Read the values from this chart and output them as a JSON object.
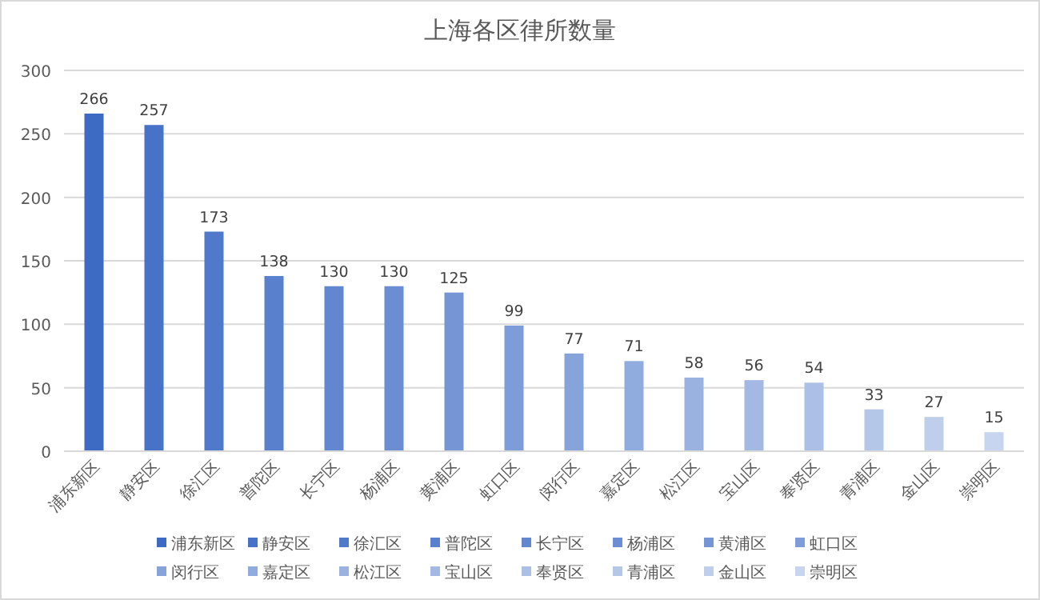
{
  "chart_data": {
    "type": "bar",
    "title": "上海各区律所数量",
    "categories": [
      "浦东新区",
      "静安区",
      "徐汇区",
      "普陀区",
      "长宁区",
      "杨浦区",
      "黄浦区",
      "虹口区",
      "闵行区",
      "嘉定区",
      "松江区",
      "宝山区",
      "奉贤区",
      "青浦区",
      "金山区",
      "崇明区"
    ],
    "series": [
      {
        "name": "浦东新区",
        "color": "#3d6bc4",
        "values": [
          266,
          null,
          null,
          null,
          null,
          null,
          null,
          null,
          null,
          null,
          null,
          null,
          null,
          null,
          null,
          null
        ]
      },
      {
        "name": "静安区",
        "color": "#4672c7",
        "values": [
          null,
          257,
          null,
          null,
          null,
          null,
          null,
          null,
          null,
          null,
          null,
          null,
          null,
          null,
          null,
          null
        ]
      },
      {
        "name": "徐汇区",
        "color": "#5079ca",
        "values": [
          null,
          null,
          173,
          null,
          null,
          null,
          null,
          null,
          null,
          null,
          null,
          null,
          null,
          null,
          null,
          null
        ]
      },
      {
        "name": "普陀区",
        "color": "#5980cc",
        "values": [
          null,
          null,
          null,
          138,
          null,
          null,
          null,
          null,
          null,
          null,
          null,
          null,
          null,
          null,
          null,
          null
        ]
      },
      {
        "name": "长宁区",
        "color": "#6287cf",
        "values": [
          null,
          null,
          null,
          null,
          130,
          null,
          null,
          null,
          null,
          null,
          null,
          null,
          null,
          null,
          null,
          null
        ]
      },
      {
        "name": "杨浦区",
        "color": "#6b8ed2",
        "values": [
          null,
          null,
          null,
          null,
          null,
          130,
          null,
          null,
          null,
          null,
          null,
          null,
          null,
          null,
          null,
          null
        ]
      },
      {
        "name": "黄浦区",
        "color": "#7595d5",
        "values": [
          null,
          null,
          null,
          null,
          null,
          null,
          125,
          null,
          null,
          null,
          null,
          null,
          null,
          null,
          null,
          null
        ]
      },
      {
        "name": "虹口区",
        "color": "#7e9cd8",
        "values": [
          null,
          null,
          null,
          null,
          null,
          null,
          null,
          99,
          null,
          null,
          null,
          null,
          null,
          null,
          null,
          null
        ]
      },
      {
        "name": "闵行区",
        "color": "#87a4da",
        "values": [
          null,
          null,
          null,
          null,
          null,
          null,
          null,
          null,
          77,
          null,
          null,
          null,
          null,
          null,
          null,
          null
        ]
      },
      {
        "name": "嘉定区",
        "color": "#90abdd",
        "values": [
          null,
          null,
          null,
          null,
          null,
          null,
          null,
          null,
          null,
          71,
          null,
          null,
          null,
          null,
          null,
          null
        ]
      },
      {
        "name": "松江区",
        "color": "#9ab2e0",
        "values": [
          null,
          null,
          null,
          null,
          null,
          null,
          null,
          null,
          null,
          null,
          58,
          null,
          null,
          null,
          null,
          null
        ]
      },
      {
        "name": "宝山区",
        "color": "#a3b9e3",
        "values": [
          null,
          null,
          null,
          null,
          null,
          null,
          null,
          null,
          null,
          null,
          null,
          56,
          null,
          null,
          null,
          null
        ]
      },
      {
        "name": "奉贤区",
        "color": "#acc0e6",
        "values": [
          null,
          null,
          null,
          null,
          null,
          null,
          null,
          null,
          null,
          null,
          null,
          null,
          54,
          null,
          null,
          null
        ]
      },
      {
        "name": "青浦区",
        "color": "#b5c7e8",
        "values": [
          null,
          null,
          null,
          null,
          null,
          null,
          null,
          null,
          null,
          null,
          null,
          null,
          null,
          33,
          null,
          null
        ]
      },
      {
        "name": "金山区",
        "color": "#bfceeb",
        "values": [
          null,
          null,
          null,
          null,
          null,
          null,
          null,
          null,
          null,
          null,
          null,
          null,
          null,
          null,
          27,
          null
        ]
      },
      {
        "name": "崇明区",
        "color": "#c8d5ee",
        "values": [
          null,
          null,
          null,
          null,
          null,
          null,
          null,
          null,
          null,
          null,
          null,
          null,
          null,
          null,
          null,
          15
        ]
      }
    ],
    "ylim": [
      0,
      300
    ],
    "yticks": [
      0,
      50,
      100,
      150,
      200,
      250,
      300
    ],
    "grid": "y",
    "data_labels": true,
    "legend": "bottom"
  }
}
